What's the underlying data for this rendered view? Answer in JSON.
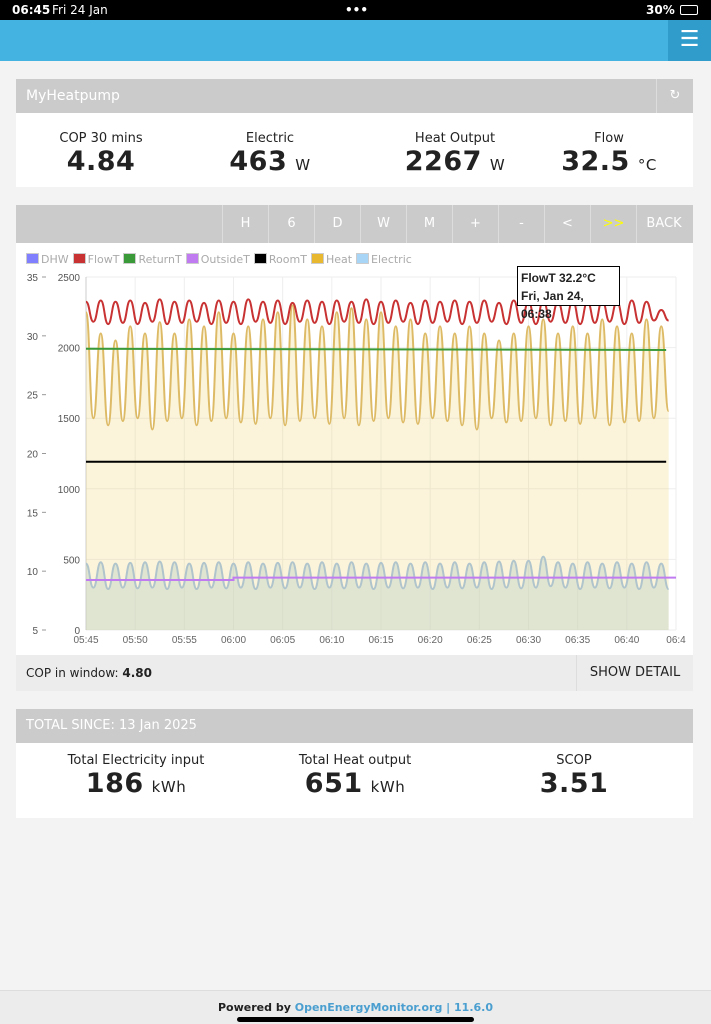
{
  "status_bar": {
    "time": "06:45",
    "date": "Fri 24 Jan",
    "battery": "30%"
  },
  "app": {
    "title": "MyHeatpump",
    "menu_icon": "hamburger-icon",
    "refresh_icon": "refresh-icon",
    "header_color": "#44b3e1"
  },
  "stats": [
    {
      "label": "COP 30 mins",
      "value": "4.84",
      "unit": ""
    },
    {
      "label": "Electric",
      "value": "463",
      "unit": "W"
    },
    {
      "label": "Heat Output",
      "value": "2267",
      "unit": "W"
    },
    {
      "label": "Flow",
      "value": "32.5",
      "unit": "°C"
    }
  ],
  "toolbar": [
    "H",
    "6",
    "D",
    "W",
    "M",
    "+",
    "-",
    "<",
    ">>",
    "BACK"
  ],
  "legend": [
    {
      "name": "DHW",
      "color": "#8080ff"
    },
    {
      "name": "FlowT",
      "color": "#c83232"
    },
    {
      "name": "ReturnT",
      "color": "#3a9a3a"
    },
    {
      "name": "OutsideT",
      "color": "#c07bf0"
    },
    {
      "name": "RoomT",
      "color": "#000000"
    },
    {
      "name": "Heat",
      "color": "#e8b830"
    },
    {
      "name": "Electric",
      "color": "#a8d4f5"
    }
  ],
  "tooltip": {
    "line1": "FlowT 32.2°C",
    "line2": "Fri, Jan 24, 06:38"
  },
  "chart_data": {
    "type": "line",
    "x_ticks": [
      "05:45",
      "05:50",
      "05:55",
      "06:00",
      "06:05",
      "06:10",
      "06:15",
      "06:20",
      "06:25",
      "06:30",
      "06:35",
      "06:40",
      "06:4"
    ],
    "xlim": [
      "05:45",
      "06:45"
    ],
    "y_left": {
      "ticks": [
        5,
        10,
        15,
        20,
        25,
        30,
        35
      ],
      "ylim": [
        5,
        35
      ]
    },
    "y_right": {
      "ticks": [
        0,
        500,
        1000,
        1500,
        2000,
        2500
      ],
      "ylim": [
        0,
        2500
      ]
    },
    "grid": true,
    "sample_start": "05:45:00",
    "sample_interval_s": 45,
    "series": [
      {
        "name": "FlowT",
        "axis": "left",
        "values": [
          32.9,
          31.2,
          33.0,
          31.0,
          32.9,
          31.1,
          33.0,
          31.0,
          32.8,
          31.2,
          33.1,
          31.0,
          32.9,
          31.1,
          33.0,
          31.2,
          32.8,
          31.0,
          33.0,
          31.1,
          32.9,
          31.0,
          33.1,
          31.2,
          32.9,
          31.1,
          33.0,
          31.0,
          32.8,
          31.2,
          33.0,
          31.1,
          32.9,
          31.0,
          33.0,
          31.2,
          32.9,
          31.1,
          33.1,
          31.0,
          32.9,
          31.1,
          33.0,
          31.2,
          32.8,
          31.0,
          33.0,
          31.1,
          32.9,
          31.2,
          33.0,
          31.0,
          32.9,
          31.1,
          33.0,
          31.2,
          32.8,
          31.0,
          33.0,
          31.1,
          32.9,
          31.0,
          33.0,
          31.2,
          32.9,
          31.1,
          33.0,
          31.0,
          32.9,
          31.1,
          33.0,
          31.2,
          32.9,
          31.0,
          33.0,
          31.1,
          32.9,
          31.3,
          32.2,
          31.3
        ]
      },
      {
        "name": "Heat",
        "axis": "right",
        "values": [
          2250,
          1500,
          2100,
          1450,
          2050,
          1480,
          2150,
          1500,
          2100,
          1420,
          2180,
          1480,
          2100,
          1500,
          2200,
          1450,
          2150,
          1480,
          2250,
          1500,
          2100,
          1470,
          2150,
          1460,
          2200,
          1500,
          2250,
          1450,
          2300,
          1480,
          2200,
          1500,
          2150,
          1460,
          2250,
          1500,
          2280,
          1450,
          2200,
          1480,
          2250,
          1500,
          2150,
          1470,
          2200,
          1460,
          2100,
          1500,
          2150,
          1480,
          2100,
          1450,
          2150,
          1420,
          2100,
          1500,
          2050,
          1470,
          2100,
          1480,
          2150,
          1500,
          2200,
          1450,
          2100,
          1480,
          2150,
          1460,
          2100,
          1500,
          2200,
          1450,
          2150,
          1470,
          2100,
          1480,
          2200,
          1500,
          2150,
          1550
        ]
      },
      {
        "name": "Electric",
        "axis": "right",
        "values": [
          470,
          300,
          480,
          290,
          470,
          300,
          475,
          295,
          480,
          300,
          485,
          290,
          480,
          300,
          470,
          290,
          475,
          300,
          480,
          295,
          470,
          300,
          480,
          290,
          470,
          300,
          475,
          295,
          480,
          300,
          470,
          290,
          480,
          300,
          470,
          295,
          480,
          300,
          470,
          290,
          475,
          300,
          480,
          295,
          470,
          300,
          480,
          290,
          470,
          300,
          480,
          295,
          470,
          300,
          480,
          290,
          485,
          300,
          490,
          295,
          490,
          300,
          520,
          310,
          480,
          300,
          470,
          290,
          480,
          300,
          470,
          295,
          480,
          300,
          470,
          290,
          480,
          300,
          470,
          290
        ]
      },
      {
        "name": "ReturnT",
        "axis": "left",
        "x": [
          "05:45",
          "06:44"
        ],
        "values": [
          28.9,
          28.8
        ]
      },
      {
        "name": "RoomT",
        "axis": "left",
        "x": [
          "05:45",
          "06:44"
        ],
        "values": [
          19.3,
          19.3
        ]
      },
      {
        "name": "OutsideT",
        "axis": "left",
        "x": [
          "05:45",
          "06:00",
          "06:00",
          "06:45"
        ],
        "values": [
          9.25,
          9.25,
          9.45,
          9.45
        ]
      }
    ]
  },
  "cop_window": {
    "label": "COP in window:",
    "value": "4.80",
    "button": "SHOW DETAIL"
  },
  "totals": {
    "title": "TOTAL SINCE: 13 Jan 2025",
    "items": [
      {
        "label": "Total Electricity input",
        "value": "186",
        "unit": "kWh"
      },
      {
        "label": "Total Heat output",
        "value": "651",
        "unit": "kWh"
      },
      {
        "label": "SCOP",
        "value": "3.51",
        "unit": ""
      }
    ]
  },
  "footer": {
    "prefix": "Powered by ",
    "link": "OpenEnergyMonitor.org",
    "sep": " | ",
    "version": "11.6.0"
  }
}
